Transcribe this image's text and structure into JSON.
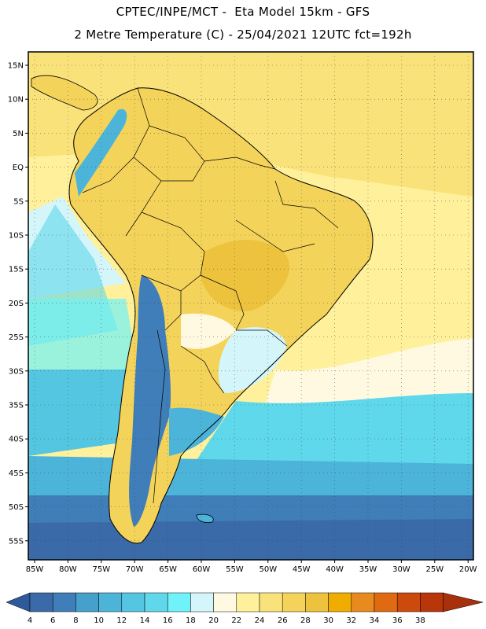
{
  "title_line1": "CPTEC/INPE/MCT -  Eta Model 15km - GFS",
  "title_line2": "2 Metre Temperature (C) - 25/04/2021 12UTC fct=192h",
  "lat_labels": [
    "15N",
    "10N",
    "5N",
    "EQ",
    "5S",
    "10S",
    "15S",
    "20S",
    "25S",
    "30S",
    "35S",
    "40S",
    "45S",
    "50S",
    "55S"
  ],
  "lon_labels": [
    "85W",
    "80W",
    "75W",
    "70W",
    "65W",
    "60W",
    "55W",
    "50W",
    "45W",
    "40W",
    "35W",
    "30W",
    "25W",
    "20W"
  ],
  "colorbar": {
    "ticks": [
      "4",
      "6",
      "8",
      "10",
      "12",
      "14",
      "16",
      "18",
      "20",
      "22",
      "24",
      "26",
      "28",
      "30",
      "32",
      "34",
      "36",
      "38"
    ],
    "colors": [
      "#3a6aa8",
      "#3f7eb8",
      "#45a0cc",
      "#4cb4d9",
      "#54c6e2",
      "#5ed8ea",
      "#6ff2f8",
      "#d4f6fa",
      "#fff9e2",
      "#fff19b",
      "#fae27a",
      "#f4d35b",
      "#edc23c",
      "#f0ad00",
      "#e88b1f",
      "#e06a12",
      "#cc4a0c",
      "#b8360a"
    ],
    "low_color": "#2e5a9c",
    "high_color": "#a8300a"
  },
  "map": {
    "ocean_colors": {
      "north": "#fae27a",
      "tropical": "#fff19b",
      "subtropical": "#fff9e2",
      "cool": "#5ed8ea",
      "cold": "#4cb4d9",
      "very_cold": "#3f7eb8",
      "polar": "#3a6aa8"
    },
    "land_colors": {
      "warm": "#f4d35b",
      "hot": "#edc23c",
      "mild": "#fff19b",
      "andes": "#3f7eb8",
      "andes_high": "#3a6aa8",
      "patagonia": "#4cb4d9",
      "south_brazil": "#d4f6fa"
    }
  }
}
